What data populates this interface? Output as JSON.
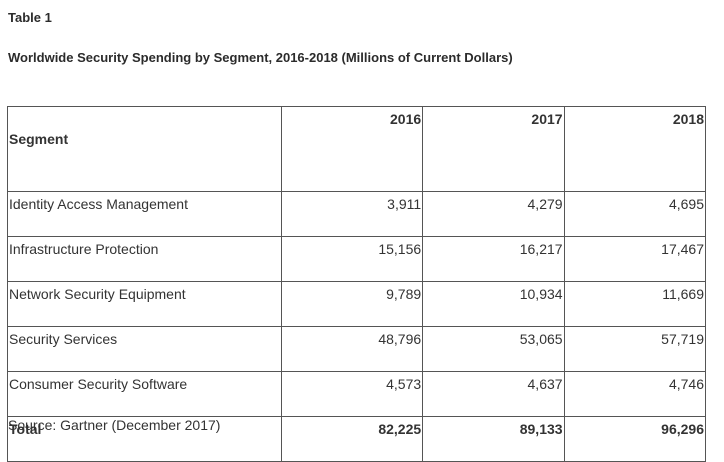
{
  "header": {
    "table_label": "Table 1",
    "title": "Worldwide Security Spending by Segment, 2016-2018 (Millions of Current Dollars)"
  },
  "table": {
    "columns": [
      "Segment",
      "2016",
      "2017",
      "2018"
    ],
    "rows": [
      {
        "segment": "Identity Access Management",
        "values": [
          "3,911",
          "4,279",
          "4,695"
        ]
      },
      {
        "segment": "Infrastructure Protection",
        "values": [
          "15,156",
          "16,217",
          "17,467"
        ]
      },
      {
        "segment": "Network Security Equipment",
        "values": [
          "9,789",
          "10,934",
          "11,669"
        ]
      },
      {
        "segment": "Security Services",
        "values": [
          "48,796",
          "53,065",
          "57,719"
        ]
      },
      {
        "segment": "Consumer Security Software",
        "values": [
          "4,573",
          "4,637",
          "4,746"
        ]
      }
    ],
    "total": {
      "segment": "Total",
      "values": [
        "82,225",
        "89,133",
        "96,296"
      ]
    }
  },
  "footer": {
    "source": "Source: Gartner (December 2017)"
  }
}
